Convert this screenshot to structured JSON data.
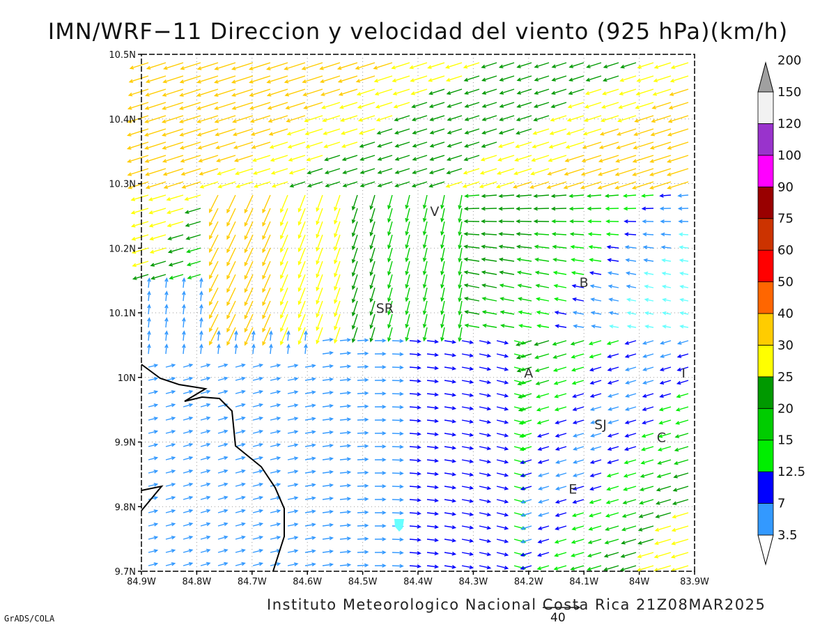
{
  "title": "IMN/WRF−11 Direccion y velocidad del viento (925 hPa)(km/h)",
  "credit": "Instituto Meteorologico Nacional Costa Rica 21Z08MAR2025",
  "software": "GrADS/COLA",
  "reference_vector": "40",
  "axes": {
    "lon_ticks": [
      "84.9W",
      "84.8W",
      "84.7W",
      "84.6W",
      "84.5W",
      "84.4W",
      "84.3W",
      "84.2W",
      "84.1W",
      "84W",
      "83.9W"
    ],
    "lat_ticks": [
      "10.5N",
      "10.4N",
      "10.3N",
      "10.2N",
      "10.1N",
      "10N",
      "9.9N",
      "9.8N",
      "9.7N"
    ],
    "lon_range": [
      -84.9,
      -83.9
    ],
    "lat_range": [
      9.7,
      10.5
    ],
    "grid": "dotted"
  },
  "places": [
    {
      "label": "V",
      "lon": -84.37,
      "lat": 10.25
    },
    {
      "label": "B",
      "lon": -84.1,
      "lat": 10.14
    },
    {
      "label": "SR",
      "lon": -84.46,
      "lat": 10.1
    },
    {
      "label": "A",
      "lon": -84.2,
      "lat": 10.0
    },
    {
      "label": "I",
      "lon": -83.92,
      "lat": 10.0
    },
    {
      "label": "SJ",
      "lon": -84.07,
      "lat": 9.92
    },
    {
      "label": "C",
      "lon": -83.96,
      "lat": 9.9
    },
    {
      "label": "E",
      "lon": -84.12,
      "lat": 9.82
    }
  ],
  "colorbar": {
    "levels": [
      "3.5",
      "7",
      "12.5",
      "15",
      "20",
      "25",
      "30",
      "40",
      "50",
      "60",
      "75",
      "90",
      "100",
      "120",
      "150",
      "200"
    ],
    "colors": [
      "#66ffff",
      "#3399ff",
      "#0000ff",
      "#00ee00",
      "#00cc00",
      "#009900",
      "#ffff00",
      "#ffcc00",
      "#ff6600",
      "#ff0000",
      "#cc3300",
      "#990000",
      "#ff00ff",
      "#9933cc",
      "#f2f2f2",
      "#a0a0a0"
    ]
  }
}
